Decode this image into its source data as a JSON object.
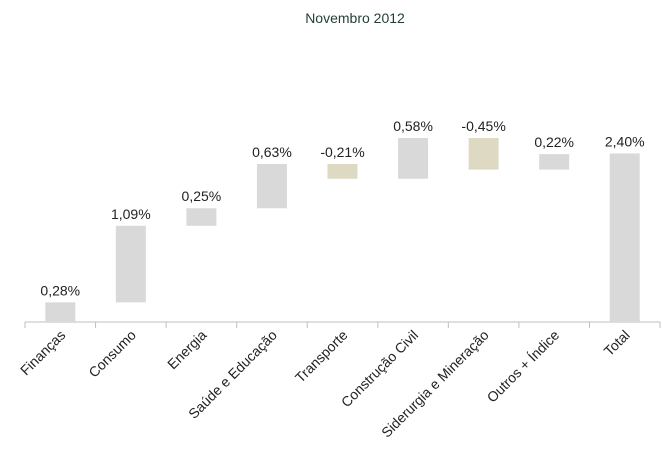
{
  "chart_data": {
    "type": "waterfall",
    "subtitle": "Novembro 2012",
    "categories": [
      "Finanças",
      "Consumo",
      "Energia",
      "Saúde e Educação",
      "Transporte",
      "Construção Civil",
      "Siderurgia e Mineração",
      "Outros + Índice",
      "Total"
    ],
    "values": [
      0.28,
      1.09,
      0.25,
      0.63,
      -0.21,
      0.58,
      -0.45,
      0.22,
      2.4
    ],
    "value_labels": [
      "0,28%",
      "1,09%",
      "0,25%",
      "0,63%",
      "-0,21%",
      "0,58%",
      "-0,45%",
      "0,22%",
      "2,40%"
    ],
    "color": "#d9d9d9",
    "negative_color": "#ddd9c3"
  }
}
